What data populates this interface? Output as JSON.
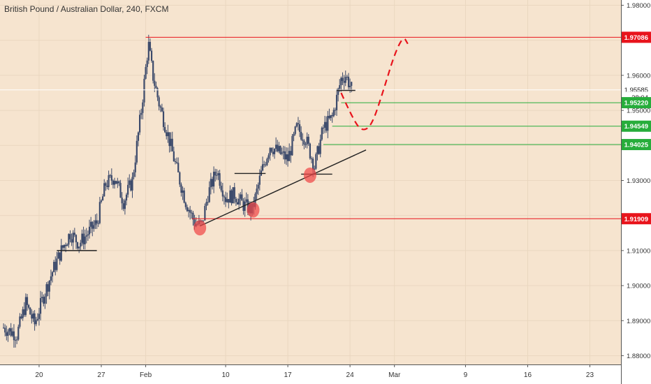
{
  "title": "British Pound / Australian Dollar, 240, FXCM",
  "chart_data": {
    "type": "candlestick",
    "ylim": [
      1.8775,
      1.9815
    ],
    "y_ticks": [
      1.88,
      1.89,
      1.9,
      1.91,
      1.92,
      1.93,
      1.94,
      1.95,
      1.96,
      1.97,
      1.98
    ],
    "x_ticks": [
      {
        "label": "20",
        "day": 20
      },
      {
        "label": "27",
        "day": 27
      },
      {
        "label": "Feb",
        "day": 32
      },
      {
        "label": "10",
        "day": 41
      },
      {
        "label": "17",
        "day": 48
      },
      {
        "label": "24",
        "day": 55
      },
      {
        "label": "Mar",
        "day": 60
      },
      {
        "label": "9",
        "day": 68
      },
      {
        "label": "16",
        "day": 75
      },
      {
        "label": "23",
        "day": 82
      }
    ],
    "x_domain": [
      15.6,
      85.5
    ],
    "colors": {
      "background": "#f6e4cf",
      "candle": "#3c4a6b",
      "red": "#e8141c",
      "green": "#27ad3b",
      "price": "#ffffff"
    },
    "price_keypoints": [
      [
        16.0,
        1.888
      ],
      [
        17.5,
        1.886
      ],
      [
        18.5,
        1.895
      ],
      [
        19.5,
        1.889
      ],
      [
        20.5,
        1.897
      ],
      [
        21.5,
        1.904
      ],
      [
        22.5,
        1.91
      ],
      [
        23.5,
        1.915
      ],
      [
        24.5,
        1.912
      ],
      [
        25.5,
        1.915
      ],
      [
        26.5,
        1.918
      ],
      [
        27.5,
        1.929
      ],
      [
        28.5,
        1.931
      ],
      [
        29.5,
        1.924
      ],
      [
        30.5,
        1.93
      ],
      [
        31.5,
        1.95
      ],
      [
        32.3,
        1.969
      ],
      [
        32.8,
        1.96
      ],
      [
        33.5,
        1.952
      ],
      [
        34.5,
        1.943
      ],
      [
        35.5,
        1.933
      ],
      [
        36.5,
        1.924
      ],
      [
        37.5,
        1.918
      ],
      [
        38.3,
        1.917
      ],
      [
        39.0,
        1.926
      ],
      [
        40.0,
        1.933
      ],
      [
        41.0,
        1.925
      ],
      [
        42.0,
        1.926
      ],
      [
        43.0,
        1.923
      ],
      [
        44.0,
        1.9215
      ],
      [
        45.0,
        1.932
      ],
      [
        46.0,
        1.94
      ],
      [
        47.0,
        1.938
      ],
      [
        48.0,
        1.936
      ],
      [
        49.0,
        1.945
      ],
      [
        50.0,
        1.942
      ],
      [
        51.0,
        1.934
      ],
      [
        52.0,
        1.945
      ],
      [
        53.0,
        1.948
      ],
      [
        54.0,
        1.959
      ],
      [
        54.5,
        1.96
      ],
      [
        55.2,
        1.956
      ]
    ],
    "horizontal_lines": [
      {
        "price": 1.97086,
        "color": "red",
        "day_from": 32.0
      },
      {
        "price": 1.91909,
        "color": "red",
        "day_from": 37.2
      },
      {
        "price": 1.9522,
        "color": "green",
        "day_from": 54.0
      },
      {
        "price": 1.94549,
        "color": "green",
        "day_from": 53.0
      },
      {
        "price": 1.94025,
        "color": "green",
        "day_from": 52.0
      }
    ],
    "trendline": {
      "from": [
        38.1,
        1.917
      ],
      "to": [
        56.8,
        1.9387
      ]
    },
    "support_segments": [
      {
        "from": [
          22.0,
          1.91
        ],
        "to": [
          26.5,
          1.91
        ]
      },
      {
        "from": [
          42.0,
          1.932
        ],
        "to": [
          45.5,
          1.932
        ]
      },
      {
        "from": [
          49.5,
          1.9318
        ],
        "to": [
          53.0,
          1.9318
        ]
      },
      {
        "from": [
          53.5,
          1.9557
        ],
        "to": [
          55.6,
          1.9557
        ]
      }
    ],
    "pivot_markers": [
      {
        "day": 38.1,
        "price": 1.9165
      },
      {
        "day": 44.1,
        "price": 1.9216
      },
      {
        "day": 50.5,
        "price": 1.9315
      }
    ],
    "projection_path": [
      [
        54.0,
        1.955
      ],
      [
        55.5,
        1.9465
      ],
      [
        56.5,
        1.944
      ],
      [
        57.5,
        1.946
      ],
      [
        58.8,
        1.956
      ],
      [
        60.0,
        1.966
      ],
      [
        61.0,
        1.9712
      ],
      [
        61.5,
        1.969
      ]
    ],
    "price_labels": [
      {
        "value": "1.97086",
        "price": 1.97086,
        "color": "red"
      },
      {
        "value": "1.95585",
        "price": 1.95585,
        "color": "price"
      },
      {
        "value": "38:04",
        "price": 1.95375,
        "color": "price"
      },
      {
        "value": "1.95220",
        "price": 1.9522,
        "color": "green"
      },
      {
        "value": "1.94549",
        "price": 1.94549,
        "color": "green"
      },
      {
        "value": "1.94025",
        "price": 1.94025,
        "color": "green"
      },
      {
        "value": "1.91909",
        "price": 1.91909,
        "color": "red"
      }
    ]
  }
}
